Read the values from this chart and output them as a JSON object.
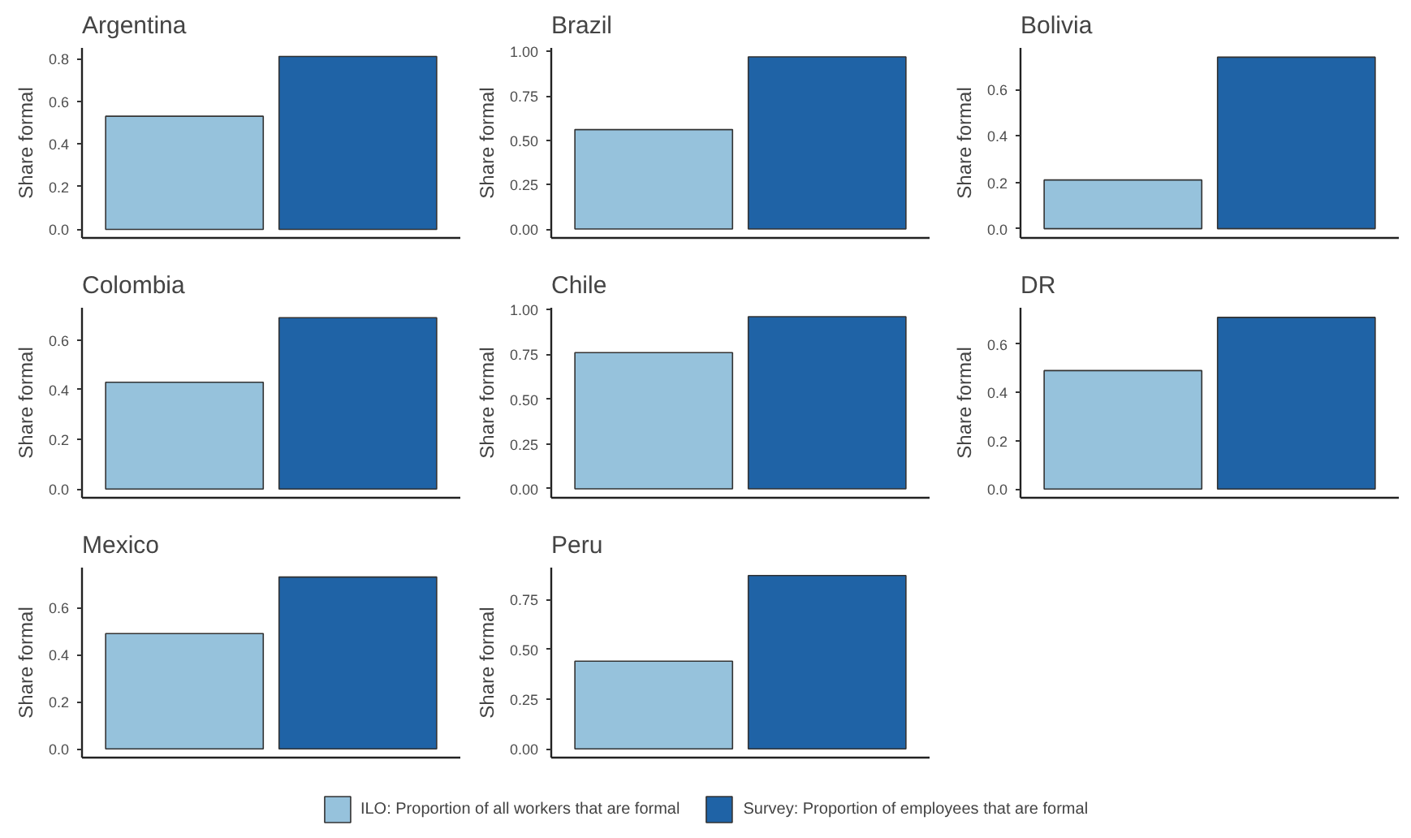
{
  "chart_data": [
    {
      "type": "bar",
      "title": "Argentina",
      "ylabel": "Share formal",
      "categories": [
        null
      ],
      "legend": "bottom",
      "grid": false,
      "tick_labels": "y",
      "ylim": [
        -0.04,
        0.85
      ],
      "yticks": [
        {
          "value": 0,
          "label": "0.0"
        },
        {
          "value": 0.2,
          "label": "0.2"
        },
        {
          "value": 0.4,
          "label": "0.4"
        },
        {
          "value": 0.6,
          "label": "0.6"
        },
        {
          "value": 0.8,
          "label": "0.8"
        }
      ],
      "series": [
        {
          "name": "ILO: Proportion of all workers that are formal",
          "color": "#96c2dc",
          "values": [
            0.53
          ]
        },
        {
          "name": "Survey: Proportion of employees that are formal",
          "color": "#1f63a6",
          "values": [
            0.81
          ]
        }
      ]
    },
    {
      "type": "bar",
      "title": "Brazil",
      "ylabel": "Share formal",
      "categories": [
        null
      ],
      "grid": false,
      "tick_labels": "y",
      "ylim": [
        -0.05,
        1.02
      ],
      "yticks": [
        {
          "value": 0,
          "label": "0.00"
        },
        {
          "value": 0.25,
          "label": "0.25"
        },
        {
          "value": 0.5,
          "label": "0.50"
        },
        {
          "value": 0.75,
          "label": "0.75"
        },
        {
          "value": 1,
          "label": "1.00"
        }
      ],
      "series": [
        {
          "color": "#96c2dc",
          "values": [
            0.56
          ]
        },
        {
          "color": "#1f63a6",
          "values": [
            0.97
          ]
        }
      ]
    },
    {
      "type": "bar",
      "title": "Bolivia",
      "ylabel": "Share formal",
      "categories": [
        null
      ],
      "grid": false,
      "tick_labels": "y",
      "ylim": [
        -0.04,
        0.78
      ],
      "yticks": [
        {
          "value": 0,
          "label": "0.0"
        },
        {
          "value": 0.2,
          "label": "0.2"
        },
        {
          "value": 0.4,
          "label": "0.4"
        },
        {
          "value": 0.6,
          "label": "0.6"
        }
      ],
      "series": [
        {
          "color": "#96c2dc",
          "values": [
            0.21
          ]
        },
        {
          "color": "#1f63a6",
          "values": [
            0.74
          ]
        }
      ]
    },
    {
      "type": "bar",
      "title": "Colombia",
      "ylabel": "Share formal",
      "categories": [
        null
      ],
      "grid": false,
      "tick_labels": "y",
      "ylim": [
        -0.035,
        0.73
      ],
      "yticks": [
        {
          "value": 0,
          "label": "0.0"
        },
        {
          "value": 0.2,
          "label": "0.2"
        },
        {
          "value": 0.4,
          "label": "0.4"
        },
        {
          "value": 0.6,
          "label": "0.6"
        }
      ],
      "series": [
        {
          "color": "#96c2dc",
          "values": [
            0.43
          ]
        },
        {
          "color": "#1f63a6",
          "values": [
            0.69
          ]
        }
      ]
    },
    {
      "type": "bar",
      "title": "Chile",
      "ylabel": "Share formal",
      "categories": [
        null
      ],
      "grid": false,
      "tick_labels": "y",
      "ylim": [
        -0.05,
        1.01
      ],
      "yticks": [
        {
          "value": 0,
          "label": "0.00"
        },
        {
          "value": 0.25,
          "label": "0.25"
        },
        {
          "value": 0.5,
          "label": "0.50"
        },
        {
          "value": 0.75,
          "label": "0.75"
        },
        {
          "value": 1,
          "label": "1.00"
        }
      ],
      "series": [
        {
          "color": "#96c2dc",
          "values": [
            0.76
          ]
        },
        {
          "color": "#1f63a6",
          "values": [
            0.96
          ]
        }
      ]
    },
    {
      "type": "bar",
      "title": "DR",
      "ylabel": "Share formal",
      "categories": [
        null
      ],
      "grid": false,
      "tick_labels": "y",
      "ylim": [
        -0.036,
        0.75
      ],
      "yticks": [
        {
          "value": 0,
          "label": "0.0"
        },
        {
          "value": 0.2,
          "label": "0.2"
        },
        {
          "value": 0.4,
          "label": "0.4"
        },
        {
          "value": 0.6,
          "label": "0.6"
        }
      ],
      "series": [
        {
          "color": "#96c2dc",
          "values": [
            0.49
          ]
        },
        {
          "color": "#1f63a6",
          "values": [
            0.71
          ]
        }
      ]
    },
    {
      "type": "bar",
      "title": "Mexico",
      "ylabel": "Share formal",
      "categories": [
        null
      ],
      "grid": false,
      "tick_labels": "y",
      "ylim": [
        -0.037,
        0.77
      ],
      "yticks": [
        {
          "value": 0,
          "label": "0.0"
        },
        {
          "value": 0.2,
          "label": "0.2"
        },
        {
          "value": 0.4,
          "label": "0.4"
        },
        {
          "value": 0.6,
          "label": "0.6"
        }
      ],
      "series": [
        {
          "color": "#96c2dc",
          "values": [
            0.49
          ]
        },
        {
          "color": "#1f63a6",
          "values": [
            0.73
          ]
        }
      ]
    },
    {
      "type": "bar",
      "title": "Peru",
      "ylabel": "Share formal",
      "categories": [
        null
      ],
      "grid": false,
      "tick_labels": "y",
      "ylim": [
        -0.044,
        0.91
      ],
      "yticks": [
        {
          "value": 0,
          "label": "0.00"
        },
        {
          "value": 0.25,
          "label": "0.25"
        },
        {
          "value": 0.5,
          "label": "0.50"
        },
        {
          "value": 0.75,
          "label": "0.75"
        }
      ],
      "series": [
        {
          "color": "#96c2dc",
          "values": [
            0.44
          ]
        },
        {
          "color": "#1f63a6",
          "values": [
            0.87
          ]
        }
      ]
    }
  ]
}
